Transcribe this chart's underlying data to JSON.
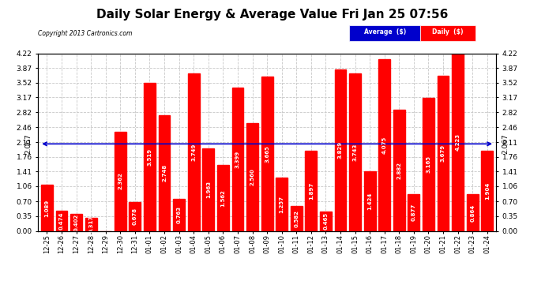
{
  "title": "Daily Solar Energy & Average Value Fri Jan 25 07:56",
  "copyright": "Copyright 2013 Cartronics.com",
  "categories": [
    "12-25",
    "12-26",
    "12-27",
    "12-28",
    "12-29",
    "12-30",
    "12-31",
    "01-01",
    "01-02",
    "01-03",
    "01-04",
    "01-05",
    "01-06",
    "01-07",
    "01-08",
    "01-09",
    "01-10",
    "01-11",
    "01-12",
    "01-13",
    "01-14",
    "01-15",
    "01-16",
    "01-17",
    "01-18",
    "01-19",
    "01-20",
    "01-21",
    "01-22",
    "01-23",
    "01-24"
  ],
  "values": [
    1.089,
    0.474,
    0.402,
    0.317,
    0.0,
    2.362,
    0.678,
    3.519,
    2.748,
    0.763,
    3.749,
    1.963,
    1.562,
    3.399,
    2.56,
    3.665,
    1.257,
    0.582,
    1.897,
    0.465,
    3.829,
    3.743,
    1.424,
    4.075,
    2.882,
    0.877,
    3.165,
    3.679,
    4.223,
    0.864,
    1.904
  ],
  "average_value": 2.067,
  "bar_color": "#ff0000",
  "average_line_color": "#0000cc",
  "background_color": "#ffffff",
  "plot_bg_color": "#ffffff",
  "grid_color": "#c8c8c8",
  "ylim": [
    0.0,
    4.22
  ],
  "yticks": [
    0.0,
    0.35,
    0.7,
    1.06,
    1.41,
    1.76,
    2.11,
    2.46,
    2.82,
    3.17,
    3.52,
    3.87,
    4.22
  ],
  "legend_avg_color": "#0000cc",
  "legend_daily_color": "#ff0000",
  "title_fontsize": 11,
  "bar_value_fontsize": 5.0,
  "avg_label": "2.067",
  "avg_label_fontsize": 6.5
}
